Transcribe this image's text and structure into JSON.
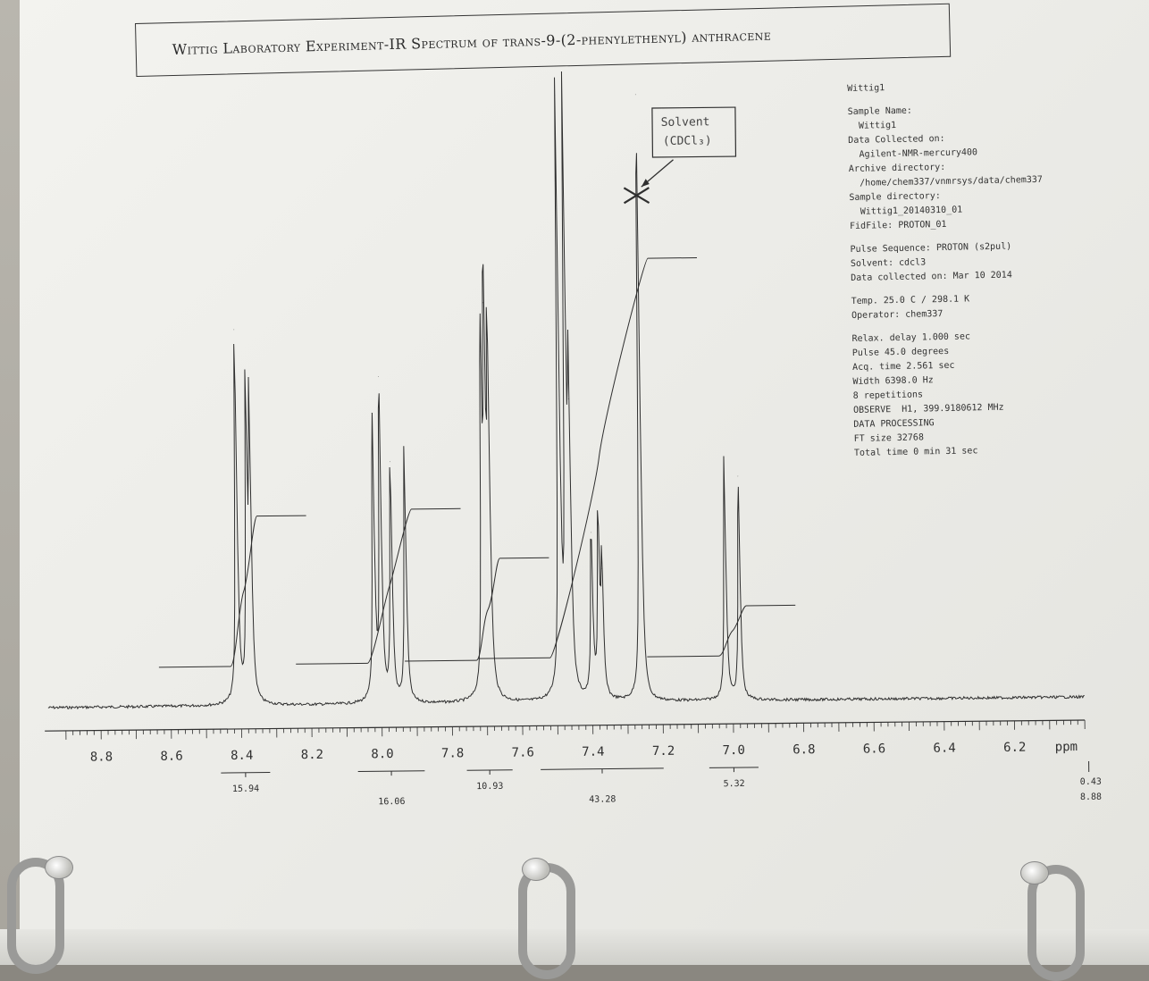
{
  "title": "Wittig Laboratory Experiment-IR Spectrum of trans-9-(2-phenylethenyl) anthracene",
  "info_lines": [
    "Wittig1",
    "",
    "Sample Name:",
    "  Wittig1",
    "Data Collected on:",
    "  Agilent-NMR-mercury400",
    "Archive directory:",
    "  /home/chem337/vnmrsys/data/chem337",
    "Sample directory:",
    "  Wittig1_20140310_01",
    "FidFile: PROTON_01",
    "",
    "Pulse Sequence: PROTON (s2pul)",
    "Solvent: cdcl3",
    "Data collected on: Mar 10 2014",
    "",
    "Temp. 25.0 C / 298.1 K",
    "Operator: chem337",
    "",
    "Relax. delay 1.000 sec",
    "Pulse 45.0 degrees",
    "Acq. time 2.561 sec",
    "Width 6398.0 Hz",
    "8 repetitions",
    "OBSERVE  H1, 399.9180612 MHz",
    "DATA PROCESSING",
    "FT size 32768",
    "Total time 0 min 31 sec"
  ],
  "annotation": {
    "line1": "Solvent",
    "line2": "(CDCl₃)"
  },
  "colors": {
    "ink": "#2f2f2f",
    "paper": "#f0f0ec"
  },
  "chart_data": {
    "type": "line",
    "x_unit": "ppm",
    "xlim": [
      8.95,
      6.0
    ],
    "x_reversed": true,
    "ticks": [
      "8.8",
      "8.6",
      "8.4",
      "8.2",
      "8.0",
      "7.8",
      "7.6",
      "7.4",
      "7.2",
      "7.0",
      "6.8",
      "6.6",
      "6.4",
      "6.2"
    ],
    "tick_values": [
      8.8,
      8.6,
      8.4,
      8.2,
      8.0,
      7.8,
      7.6,
      7.4,
      7.2,
      7.0,
      6.8,
      6.6,
      6.4,
      6.2
    ],
    "xlabel": "ppm",
    "peaks": [
      {
        "ppm": 8.41,
        "height": 0.62
      },
      {
        "ppm": 8.38,
        "height": 0.5
      },
      {
        "ppm": 8.37,
        "height": 0.48
      },
      {
        "ppm": 8.02,
        "height": 0.48
      },
      {
        "ppm": 8.0,
        "height": 0.54
      },
      {
        "ppm": 7.97,
        "height": 0.4
      },
      {
        "ppm": 7.93,
        "height": 0.42
      },
      {
        "ppm": 7.71,
        "height": 0.58
      },
      {
        "ppm": 7.7,
        "height": 0.66
      },
      {
        "ppm": 7.69,
        "height": 0.6
      },
      {
        "ppm": 7.49,
        "height": 1.0
      },
      {
        "ppm": 7.47,
        "height": 0.95
      },
      {
        "ppm": 7.46,
        "height": 0.5
      },
      {
        "ppm": 7.4,
        "height": 0.28
      },
      {
        "ppm": 7.38,
        "height": 0.3
      },
      {
        "ppm": 7.37,
        "height": 0.22
      },
      {
        "ppm": 7.26,
        "height": 1.0
      },
      {
        "ppm": 7.02,
        "height": 0.4
      },
      {
        "ppm": 6.98,
        "height": 0.37
      }
    ],
    "solvent_peak_ppm": 7.26,
    "integrals": [
      {
        "from": 8.43,
        "to": 8.35,
        "value": "15.94"
      },
      {
        "from": 8.04,
        "to": 7.91,
        "value": "16.06"
      },
      {
        "from": 7.73,
        "to": 7.66,
        "value": "10.93"
      },
      {
        "from": 7.52,
        "to": 7.23,
        "value": "43.28"
      },
      {
        "from": 7.04,
        "to": 6.96,
        "value": "5.32"
      }
    ],
    "integral_labels": [
      "15.94",
      "16.06",
      "10.93",
      "43.28",
      "5.32"
    ],
    "right_values": [
      "0.43",
      "8.88"
    ]
  }
}
